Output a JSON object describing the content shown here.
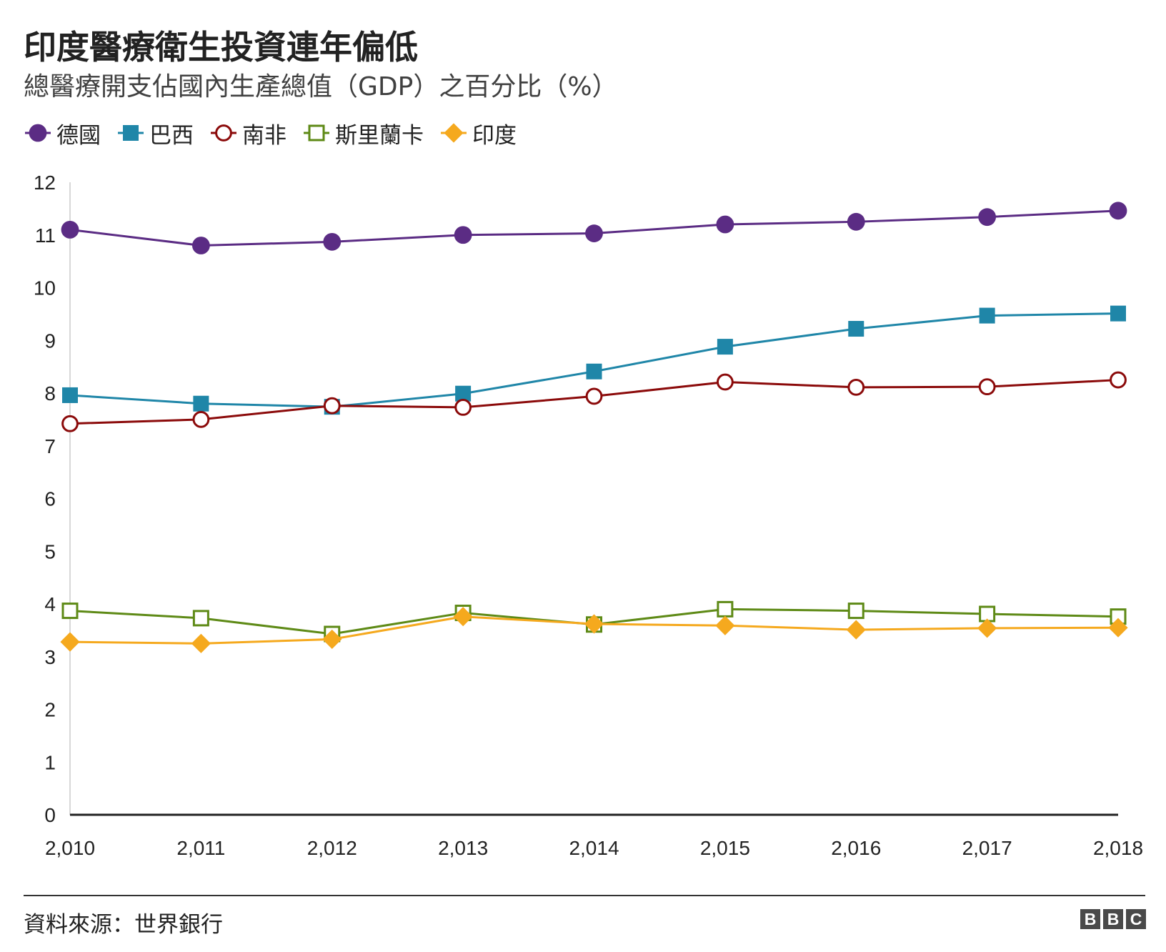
{
  "title": "印度醫療衛生投資連年偏低",
  "subtitle": "總醫療開支佔國內生產總值（GDP）之百分比（%）",
  "source": "資料來源：世界銀行",
  "logo": [
    "B",
    "B",
    "C"
  ],
  "chart_data": {
    "type": "line",
    "title": "印度醫療衛生投資連年偏低",
    "subtitle": "總醫療開支佔國內生產總值（GDP）之百分比（%）",
    "xlabel": "",
    "ylabel": "",
    "x": [
      "2,010",
      "2,011",
      "2,012",
      "2,013",
      "2,014",
      "2,015",
      "2,016",
      "2,017",
      "2,018"
    ],
    "ylim": [
      0,
      12
    ],
    "yticks": [
      0,
      1,
      2,
      3,
      4,
      5,
      6,
      7,
      8,
      9,
      10,
      11,
      12
    ],
    "grid": false,
    "legend_position": "top-left",
    "series": [
      {
        "name": "德國",
        "color": "#5b2c84",
        "marker": "circle-filled",
        "values": [
          11.1,
          10.8,
          10.87,
          11.0,
          11.03,
          11.2,
          11.25,
          11.34,
          11.46
        ]
      },
      {
        "name": "巴西",
        "color": "#1f86a8",
        "marker": "square-filled",
        "values": [
          7.96,
          7.8,
          7.74,
          7.99,
          8.41,
          8.88,
          9.22,
          9.47,
          9.51
        ]
      },
      {
        "name": "南非",
        "color": "#8b0a0a",
        "marker": "circle-open",
        "values": [
          7.42,
          7.5,
          7.76,
          7.73,
          7.94,
          8.21,
          8.11,
          8.12,
          8.25
        ]
      },
      {
        "name": "斯里蘭卡",
        "color": "#5e8a16",
        "marker": "square-open",
        "values": [
          3.87,
          3.73,
          3.43,
          3.83,
          3.61,
          3.9,
          3.87,
          3.81,
          3.76
        ]
      },
      {
        "name": "印度",
        "color": "#f5a91e",
        "marker": "diamond-filled",
        "values": [
          3.28,
          3.25,
          3.33,
          3.76,
          3.62,
          3.59,
          3.51,
          3.54,
          3.55
        ]
      }
    ]
  }
}
